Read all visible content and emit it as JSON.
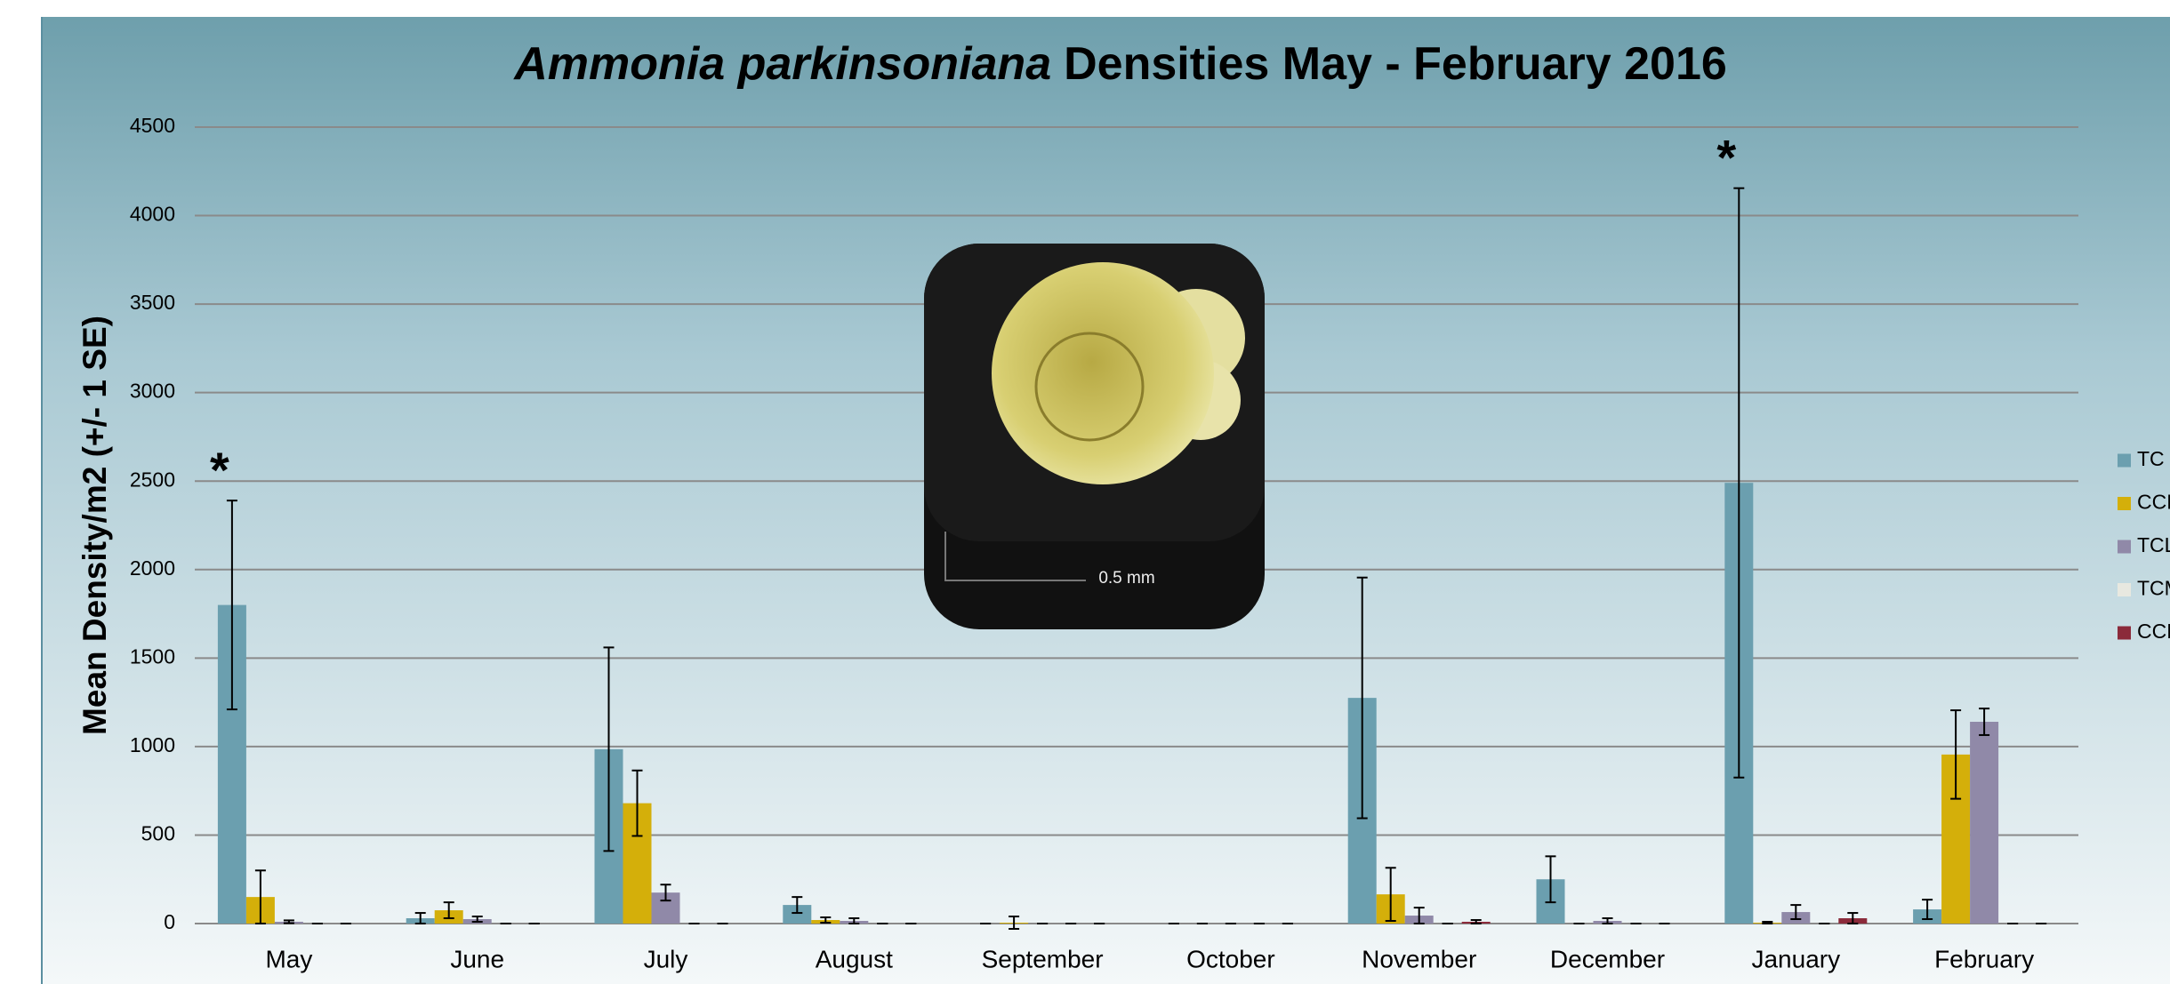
{
  "chart_data": {
    "type": "bar",
    "title_species": "Ammonia parkinsoniana",
    "title_rest": "Densities May - February 2016",
    "y_label": "Mean Density/m2 (+/- 1 SE)",
    "categories": [
      "May",
      "June",
      "July",
      "August",
      "September",
      "October",
      "November",
      "December",
      "January",
      "February"
    ],
    "series": [
      {
        "name": "TC",
        "color": "#6b9faf",
        "values": [
          1800,
          30,
          985,
          105,
          0,
          0,
          1275,
          250,
          2490,
          80
        ],
        "errors": [
          590,
          30,
          575,
          45,
          0,
          0,
          680,
          130,
          1665,
          55
        ]
      },
      {
        "name": "CCL",
        "color": "#d4af0a",
        "values": [
          150,
          75,
          680,
          20,
          5,
          0,
          165,
          0,
          5,
          955
        ],
        "errors": [
          150,
          45,
          185,
          15,
          35,
          0,
          150,
          0,
          5,
          250
        ]
      },
      {
        "name": "TCL",
        "color": "#9089a8",
        "values": [
          10,
          25,
          175,
          15,
          0,
          0,
          45,
          15,
          65,
          1140
        ],
        "errors": [
          8,
          15,
          45,
          15,
          0,
          0,
          45,
          15,
          40,
          75
        ]
      },
      {
        "name": "TCM",
        "color": "#e8e8e0",
        "values": [
          0,
          0,
          0,
          0,
          0,
          0,
          0,
          0,
          0,
          0
        ],
        "errors": [
          0,
          0,
          0,
          0,
          0,
          0,
          0,
          0,
          0,
          0
        ]
      },
      {
        "name": "CCM",
        "color": "#8b2a3a",
        "values": [
          0,
          0,
          0,
          0,
          0,
          0,
          10,
          0,
          30,
          0
        ],
        "errors": [
          0,
          0,
          0,
          0,
          0,
          0,
          10,
          0,
          30,
          0
        ]
      }
    ],
    "ylim": [
      0,
      4500
    ],
    "yticks": [
      0,
      500,
      1000,
      1500,
      2000,
      2500,
      3000,
      3500,
      4000,
      4500
    ],
    "grid": true,
    "legend": "right",
    "annotations": [
      {
        "text": "*",
        "category": 0,
        "series": 0
      },
      {
        "text": "*",
        "category": 8,
        "series": 0
      }
    ],
    "inset_scale_label": "0.5 mm"
  }
}
